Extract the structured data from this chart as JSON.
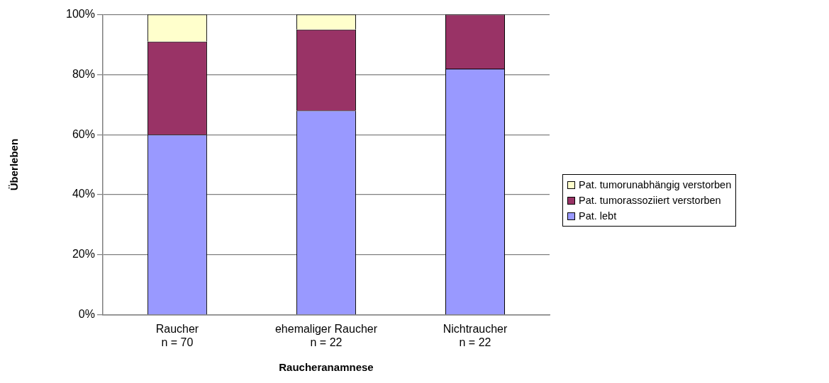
{
  "chart_data": {
    "type": "bar",
    "stacked": true,
    "xlabel": "Raucheranamnese",
    "ylabel": "Überleben",
    "categories": [
      "Raucher\nn = 70",
      "ehemaliger Raucher\nn = 22",
      "Nichtraucher\nn = 22"
    ],
    "series": [
      {
        "name": "Pat. lebt",
        "color": "#9999ff",
        "values": [
          60,
          68,
          82
        ]
      },
      {
        "name": "Pat. tumorassoziiert verstorben",
        "color": "#993366",
        "values": [
          31,
          27,
          18
        ]
      },
      {
        "name": "Pat. tumorunabhängig verstorben",
        "color": "#ffffcc",
        "values": [
          9,
          5,
          0
        ]
      }
    ],
    "ylim": [
      0,
      100
    ],
    "yticks": [
      {
        "value": 0,
        "label": "0%"
      },
      {
        "value": 20,
        "label": "20%"
      },
      {
        "value": 40,
        "label": "40%"
      },
      {
        "value": 60,
        "label": "60%"
      },
      {
        "value": 80,
        "label": "80%"
      },
      {
        "value": 100,
        "label": "100%"
      }
    ],
    "grid": "y",
    "legend": "right"
  }
}
